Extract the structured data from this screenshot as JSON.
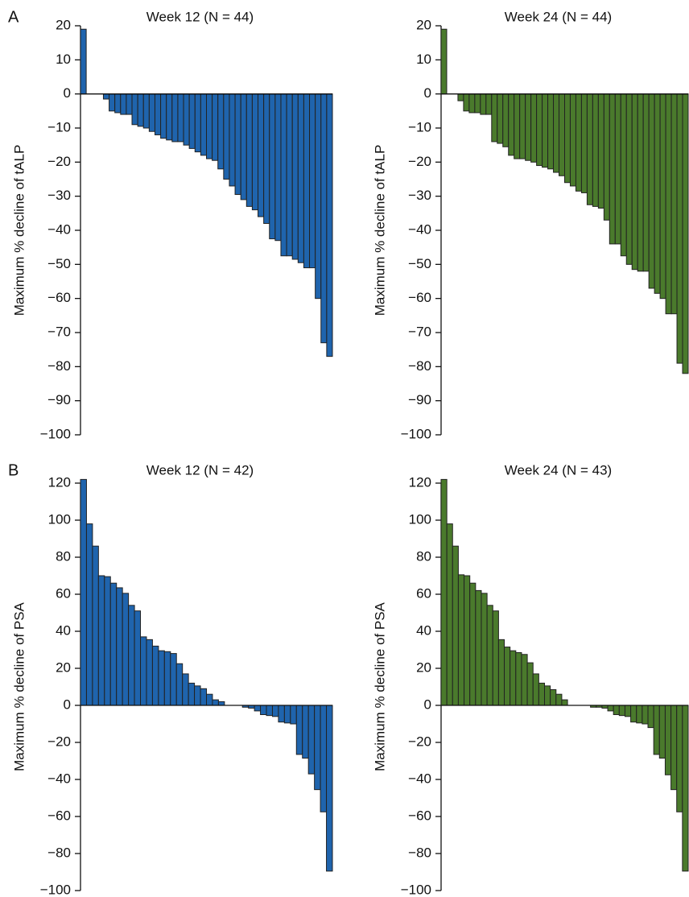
{
  "chart_data": [
    {
      "type": "bar",
      "panel_label": "A",
      "title": "Week 12 (N = 44)",
      "ylabel": "Maximum % decline of tALP",
      "color": "#1f64ad",
      "values": [
        19,
        0,
        0,
        0,
        -1.5,
        -5,
        -5.5,
        -6,
        -6,
        -9,
        -9.5,
        -10,
        -11,
        -12,
        -13,
        -13.5,
        -14,
        -14,
        -15,
        -16,
        -17,
        -18,
        -19,
        -19.5,
        -22,
        -25,
        -27,
        -29.5,
        -31,
        -33,
        -34,
        -36,
        -38,
        -42.5,
        -43,
        -47.5,
        -47.5,
        -48.5,
        -49.5,
        -51,
        -51,
        -60,
        -73,
        -77
      ],
      "ylim": [
        -100,
        20
      ],
      "yticks": [
        20,
        10,
        0,
        {
          "value": -10,
          "label": "−10"
        },
        {
          "value": -20,
          "label": "−20"
        },
        {
          "value": -30,
          "label": "−30"
        },
        {
          "value": -40,
          "label": "−40"
        },
        {
          "value": -50,
          "label": "−50"
        },
        {
          "value": -60,
          "label": "−60"
        },
        {
          "value": -70,
          "label": "−70"
        },
        {
          "value": -80,
          "label": "−80"
        },
        {
          "value": -90,
          "label": "−90"
        },
        {
          "value": -100,
          "label": "−100"
        }
      ]
    },
    {
      "type": "bar",
      "title": "Week 24 (N = 44)",
      "ylabel": "Maximum % decline of tALP",
      "color": "#4a7a2c",
      "values": [
        19,
        0,
        0,
        -2,
        -5,
        -5.5,
        -5.5,
        -6,
        -6,
        -14,
        -14.5,
        -15.5,
        -18,
        -19,
        -19,
        -19.5,
        -20,
        -21,
        -21.5,
        -22,
        -23,
        -24,
        -26,
        -27,
        -28.5,
        -29,
        -32.5,
        -33,
        -33.5,
        -37,
        -44,
        -44,
        -47.5,
        -50,
        -51.5,
        -52,
        -52,
        -57,
        -58.5,
        -60,
        -64.5,
        -64.5,
        -79,
        -82
      ],
      "ylim": [
        -100,
        20
      ],
      "yticks": [
        20,
        10,
        0,
        {
          "value": -10,
          "label": "−10"
        },
        {
          "value": -20,
          "label": "−20"
        },
        {
          "value": -30,
          "label": "−30"
        },
        {
          "value": -40,
          "label": "−40"
        },
        {
          "value": -50,
          "label": "−50"
        },
        {
          "value": -60,
          "label": "−60"
        },
        {
          "value": -70,
          "label": "−70"
        },
        {
          "value": -80,
          "label": "−80"
        },
        {
          "value": -90,
          "label": "−90"
        },
        {
          "value": -100,
          "label": "−100"
        }
      ]
    },
    {
      "type": "bar",
      "panel_label": "B",
      "title": "Week 12 (N = 42)",
      "ylabel": "Maximum % decline of PSA",
      "color": "#1f64ad",
      "values": [
        122,
        98,
        86,
        70,
        69.5,
        66,
        63.5,
        60.5,
        54,
        51,
        37,
        35.5,
        32,
        29.5,
        29,
        28,
        22.5,
        17,
        12,
        10.5,
        9,
        6,
        3,
        2,
        0,
        0,
        0,
        -1,
        -1.5,
        -3,
        -5,
        -5.5,
        -6,
        -9,
        -9.5,
        -10,
        -26.5,
        -28.5,
        -37,
        -45.5,
        -57.5,
        -89.5
      ],
      "ylim": [
        -100,
        120
      ],
      "yticks": [
        120,
        100,
        80,
        60,
        40,
        20,
        0,
        {
          "value": -20,
          "label": "−20"
        },
        {
          "value": -40,
          "label": "−40"
        },
        {
          "value": -60,
          "label": "−60"
        },
        {
          "value": -80,
          "label": "−80"
        },
        {
          "value": -100,
          "label": "−100"
        }
      ]
    },
    {
      "type": "bar",
      "title": "Week 24 (N = 43)",
      "ylabel": "Maximum % decline of PSA",
      "color": "#4a7a2c",
      "values": [
        122,
        98,
        86,
        70.5,
        70,
        66,
        62,
        60.5,
        54,
        51,
        35.5,
        31.5,
        29.5,
        28.5,
        27.5,
        23,
        17,
        12,
        10.5,
        8.5,
        6,
        3,
        0,
        0,
        0,
        0,
        -1,
        -1,
        -1.5,
        -3,
        -5,
        -5.5,
        -6,
        -9,
        -9.5,
        -10,
        -12,
        -26.5,
        -28.5,
        -37.5,
        -45.5,
        -57.5,
        -89.5
      ],
      "ylim": [
        -100,
        120
      ],
      "yticks": [
        120,
        100,
        80,
        60,
        40,
        20,
        0,
        {
          "value": -20,
          "label": "−20"
        },
        {
          "value": -40,
          "label": "−40"
        },
        {
          "value": -60,
          "label": "−60"
        },
        {
          "value": -80,
          "label": "−80"
        },
        {
          "value": -100,
          "label": "−100"
        }
      ]
    }
  ]
}
